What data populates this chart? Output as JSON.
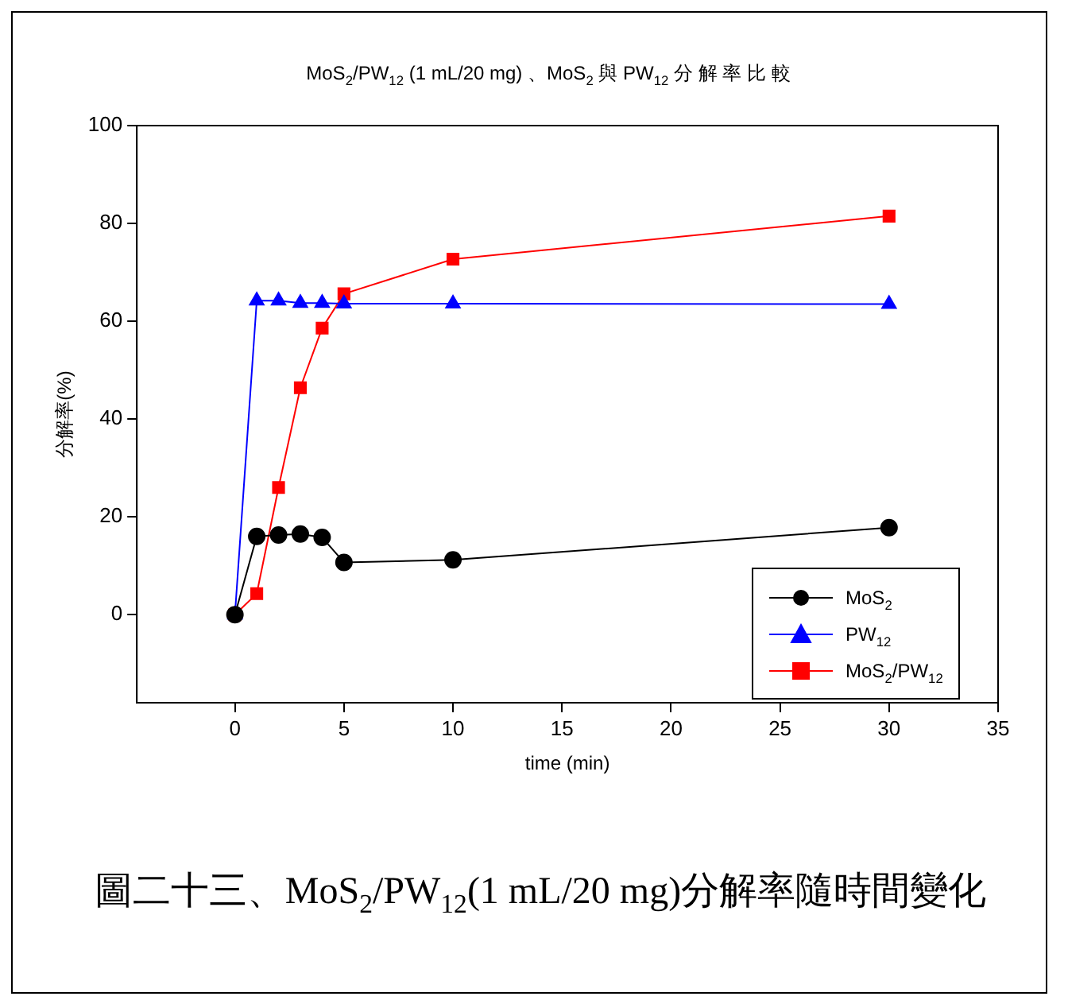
{
  "chart_data": {
    "type": "line",
    "title": "MoS$_{2}$/PW$_{12}$ (1 mL/20 mg) 、MoS$_{2}$ 與 PW$_{12}$ 分 解 率 比 較",
    "xlabel": "time (min)",
    "ylabel": "分解率(%)",
    "x": [
      0,
      1,
      2,
      3,
      4,
      5,
      10,
      30
    ],
    "series": [
      {
        "name": "MoS$_{2}$",
        "color": "#000000",
        "marker": "circle",
        "values": [
          0,
          16.0,
          16.3,
          16.5,
          15.8,
          10.7,
          11.2,
          17.8
        ]
      },
      {
        "name": "PW$_{12}$",
        "color": "#0000ff",
        "marker": "triangle",
        "values": [
          0,
          64.2,
          64.2,
          63.7,
          63.7,
          63.6,
          63.6,
          63.5
        ]
      },
      {
        "name": "MoS$_{2}$/PW$_{12}$",
        "color": "#ff0000",
        "marker": "square",
        "values": [
          0,
          4.3,
          26.0,
          46.4,
          58.6,
          65.6,
          72.7,
          81.5
        ]
      }
    ],
    "xlim": [
      -4.5,
      35
    ],
    "xticks": [
      0,
      5,
      10,
      15,
      20,
      25,
      30,
      35
    ],
    "ylim": [
      -18,
      100
    ],
    "yticks": [
      0,
      20,
      40,
      60,
      80,
      100
    ],
    "legend": "bottom right",
    "annotations": [
      "圖二十三、MoS$_{2}$/PW$_{12}$(1 mL/20 mg)分解率隨時間變化"
    ]
  }
}
